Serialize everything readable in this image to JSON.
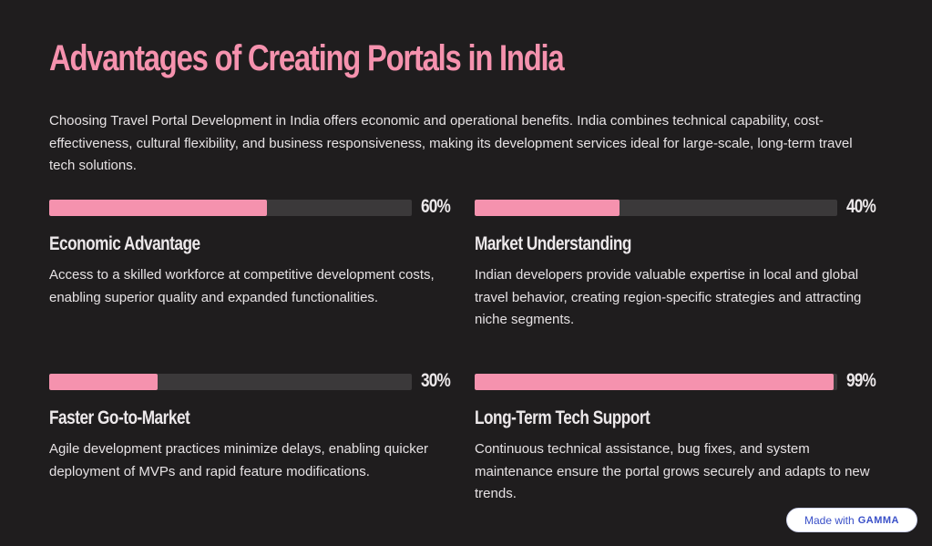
{
  "title": "Advantages of Creating Portals in India",
  "intro": "Choosing Travel Portal Development in India offers economic and operational benefits. India combines technical capability, cost-effectiveness, cultural flexibility, and business responsiveness, making its development services ideal for large-scale, long-term travel tech solutions.",
  "cards": [
    {
      "percent_label": "60%",
      "percent": 60,
      "title": "Economic Advantage",
      "text": "Access to a skilled workforce at competitive development costs, enabling superior quality and expanded functionalities."
    },
    {
      "percent_label": "40%",
      "percent": 40,
      "title": "Market Understanding",
      "text": "Indian developers provide valuable expertise in local and global travel behavior, creating region-specific strategies and attracting niche segments."
    },
    {
      "percent_label": "30%",
      "percent": 30,
      "title": "Faster Go-to-Market",
      "text": "Agile development practices minimize delays, enabling quicker deployment of MVPs and rapid feature modifications."
    },
    {
      "percent_label": "99%",
      "percent": 99,
      "title": "Long-Term Tech Support",
      "text": "Continuous technical assistance, bug fixes, and system maintenance ensure the portal grows securely and adapts to new trends."
    }
  ],
  "badge": {
    "prefix": "Made with",
    "brand": "GAMMA"
  },
  "colors": {
    "accent": "#f592ae",
    "background": "#1f1d1e",
    "track": "#3b393a"
  }
}
